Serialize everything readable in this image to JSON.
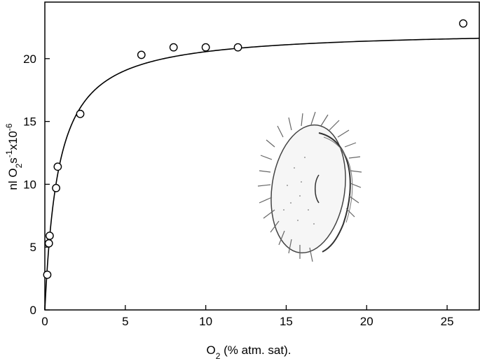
{
  "chart_data": {
    "type": "scatter",
    "x_axis": {
      "label_main": "O",
      "label_sub": "2",
      "label_rest": " (% atm. sat).",
      "range": [
        0,
        27
      ],
      "ticks": [
        0,
        5,
        10,
        15,
        20,
        25
      ],
      "tick_labels": [
        "0",
        "5",
        "10",
        "15",
        "20",
        "25"
      ]
    },
    "y_axis": {
      "label_parts": [
        {
          "text": "nl O",
          "shift": "none"
        },
        {
          "text": "2",
          "shift": "sub"
        },
        {
          "text": "s",
          "shift": "none"
        },
        {
          "text": "-1",
          "shift": "super"
        },
        {
          "text": "x10",
          "shift": "none"
        },
        {
          "text": "-6",
          "shift": "super"
        }
      ],
      "range": [
        0,
        24.5
      ],
      "ticks": [
        0,
        5,
        10,
        15,
        20
      ],
      "tick_labels": [
        "0",
        "5",
        "10",
        "15",
        "20"
      ]
    },
    "grid": false,
    "series": [
      {
        "marker": "open-circle",
        "points": [
          {
            "x": 0.15,
            "y": 2.8
          },
          {
            "x": 0.25,
            "y": 5.3
          },
          {
            "x": 0.3,
            "y": 5.9
          },
          {
            "x": 0.7,
            "y": 9.7
          },
          {
            "x": 0.8,
            "y": 11.4
          },
          {
            "x": 2.2,
            "y": 15.6
          },
          {
            "x": 6.0,
            "y": 20.3
          },
          {
            "x": 8.0,
            "y": 20.9
          },
          {
            "x": 10.0,
            "y": 20.9
          },
          {
            "x": 12.0,
            "y": 20.9
          },
          {
            "x": 26.0,
            "y": 22.8
          }
        ]
      }
    ],
    "fit_curve": {
      "model": "michaelis-menten",
      "vmax": 22.3,
      "km": 0.85,
      "x_range": [
        0,
        27
      ]
    },
    "inset_illustration": "ciliate-organism-drawing"
  }
}
